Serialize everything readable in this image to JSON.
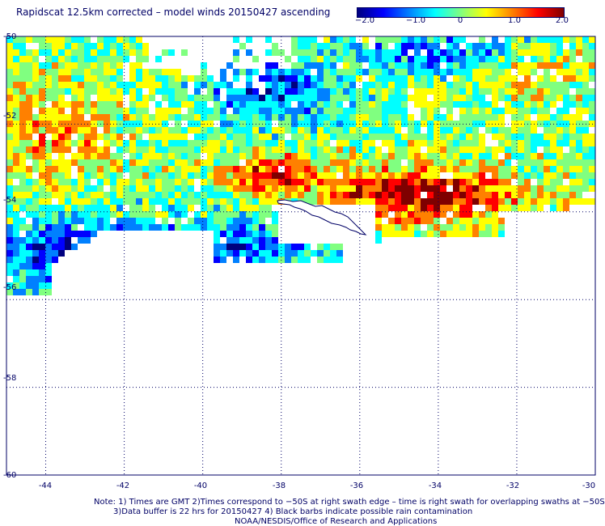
{
  "title": "Rapidscat 12.5km corrected – model winds 20150427 ascending",
  "colorbar": {
    "min": -2.0,
    "max": 2.0,
    "tick_labels": [
      "−2.0",
      "−1.0",
      "0",
      "1.0",
      "2.0"
    ],
    "tick_values": [
      -2.0,
      -1.0,
      0,
      1.0,
      2.0
    ],
    "colors": [
      "#00007f",
      "#0000ff",
      "#0080ff",
      "#00ffff",
      "#80ff80",
      "#ffff00",
      "#ff8000",
      "#ff0000",
      "#7f0000"
    ]
  },
  "map": {
    "lon_range": [
      -45,
      -30
    ],
    "lat_range": [
      -60,
      -50
    ],
    "x_ticks": [
      "-44",
      "-42",
      "-40",
      "-38",
      "-36",
      "-34",
      "-32",
      "-30"
    ],
    "y_ticks": [
      "-50",
      "-52",
      "-54",
      "-56",
      "-58",
      "-60"
    ],
    "grid": true,
    "grid_style": "dotted",
    "grid_color": "#000066",
    "island_outline_color": "#000066"
  },
  "notes": {
    "line1": "Note: 1) Times are GMT 2)Times correspond to −50S at right swath edge – time is right swath for overlapping swaths at −50S",
    "line2": "3)Data buffer is 22 hrs for 20150427 4) Black barbs indicate possible rain contamination",
    "line3": "NOAA/NESDIS/Office of Research and Applications"
  }
}
